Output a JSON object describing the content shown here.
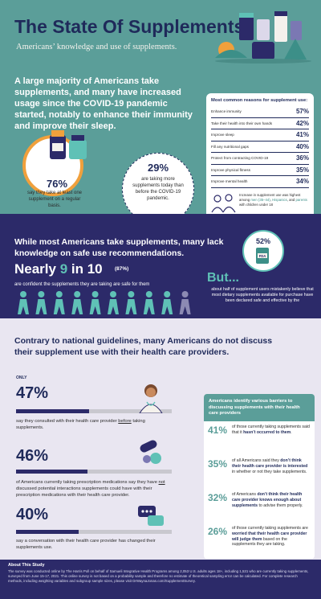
{
  "header": {
    "title": "The State Of Supplements",
    "subtitle": "Americans’ knowledge and use of supplements."
  },
  "section1": {
    "intro": "A large majority of Americans take supplements, and many have increased usage since the COVID-19 pandemic started, notably to enhance their immunity and improve their sleep.",
    "stat_a": {
      "value": "76%",
      "caption": "say they take at least one supplement on a regular basis."
    },
    "stat_b": {
      "value": "29%",
      "caption": "are taking more supplements today than before the COVID-19 pandemic."
    },
    "reasons": {
      "title": "Most common reasons for supplement use:",
      "items": [
        {
          "label": "Enhance immunity",
          "pct": "57%"
        },
        {
          "label": "Take their health into their own hands",
          "pct": "42%"
        },
        {
          "label": "Improve sleep",
          "pct": "41%"
        },
        {
          "label": "Fill any nutritional gaps",
          "pct": "40%"
        },
        {
          "label": "Protect from contracting COVID-19",
          "pct": "36%"
        },
        {
          "label": "Improve physical fitness",
          "pct": "35%"
        },
        {
          "label": "Improve mental health",
          "pct": "34%"
        }
      ],
      "note_pre": "Increase in supplement use was highest among ",
      "note_men": "men (35–44)",
      "note_sep": ", ",
      "note_hispanics": "Hispanics",
      "note_and": ", and ",
      "note_parents": "parents",
      "note_post": " with children under 18"
    }
  },
  "section2": {
    "intro": "While most Americans take supplements, many lack knowledge on safe use recommendations.",
    "nearly_pre": "Nearly ",
    "nearly_num": "9",
    "nearly_post": " in 10",
    "pct": "(87%)",
    "confident": "are confident the supplements they are taking are safe for them",
    "but_heading": "But...",
    "stat": {
      "value": "52%",
      "icon_label": "FDA"
    },
    "but_text": "about half of supplement users mistakenly believe that most dietary supplements available for purchase have been declared safe and effective by the"
  },
  "section3": {
    "intro": "Contrary to national guidelines, many Americans do not discuss their supplement use with their health care providers.",
    "only": "ONLY",
    "stats": [
      {
        "value": "47%",
        "fill": 0.47,
        "caption_pre": "say they consulted with their health care provider ",
        "caption_u": "before",
        "caption_post": " taking supplements."
      },
      {
        "value": "46%",
        "fill": 0.46,
        "caption_pre": "of Americans currently taking prescription medications say they have ",
        "caption_u": "not",
        "caption_post": " discussed potential interactions supplements could have with their prescription medications with their health care provider."
      },
      {
        "value": "40%",
        "fill": 0.4,
        "caption_pre": "say a conversation with their health care provider has changed their supplements use.",
        "caption_u": "",
        "caption_post": ""
      }
    ],
    "barriers": {
      "title": "Americans identify various barriers to discussing supplements with their health care providers",
      "items": [
        {
          "pct": "41%",
          "pre": "of those currently taking supplements said that it ",
          "bold": "hasn’t occurred to them",
          "post": "."
        },
        {
          "pct": "35%",
          "pre": "of all Americans said they ",
          "bold": "don’t think their health care provider is interested",
          "post": " in whether or not they take supplements."
        },
        {
          "pct": "32%",
          "pre": "of Americans ",
          "bold": "don’t think their health care provider knows enough about supplements",
          "post": " to advise them properly."
        },
        {
          "pct": "26%",
          "pre": "of those currently taking supplements are ",
          "bold": "worried that their health care provider will judge them",
          "post": " based on the supplements they are taking."
        }
      ]
    }
  },
  "footer": {
    "title": "About This Study",
    "text": "The survey was conducted online by The Harris Poll on behalf of Samueli Integrative Health Programs among 2,053 U.S. adults ages 18+, including 1,531 who are currently taking supplements, surveyed from June 15-17, 2021. This online survey is not based on a probability sample and therefore no estimate of theoretical sampling error can be calculated. For complete research methods, including weighting variables and subgroup sample sizes, please visit DrWaynaJonas.com/SupplementSurvey."
  },
  "colors": {
    "teal": "#5b9e99",
    "navy": "#2c2a69",
    "dark_blue": "#1f2a5a",
    "accent_teal": "#5fc1b6",
    "orange": "#f0a03c",
    "lavender": "#e9e6f1"
  }
}
